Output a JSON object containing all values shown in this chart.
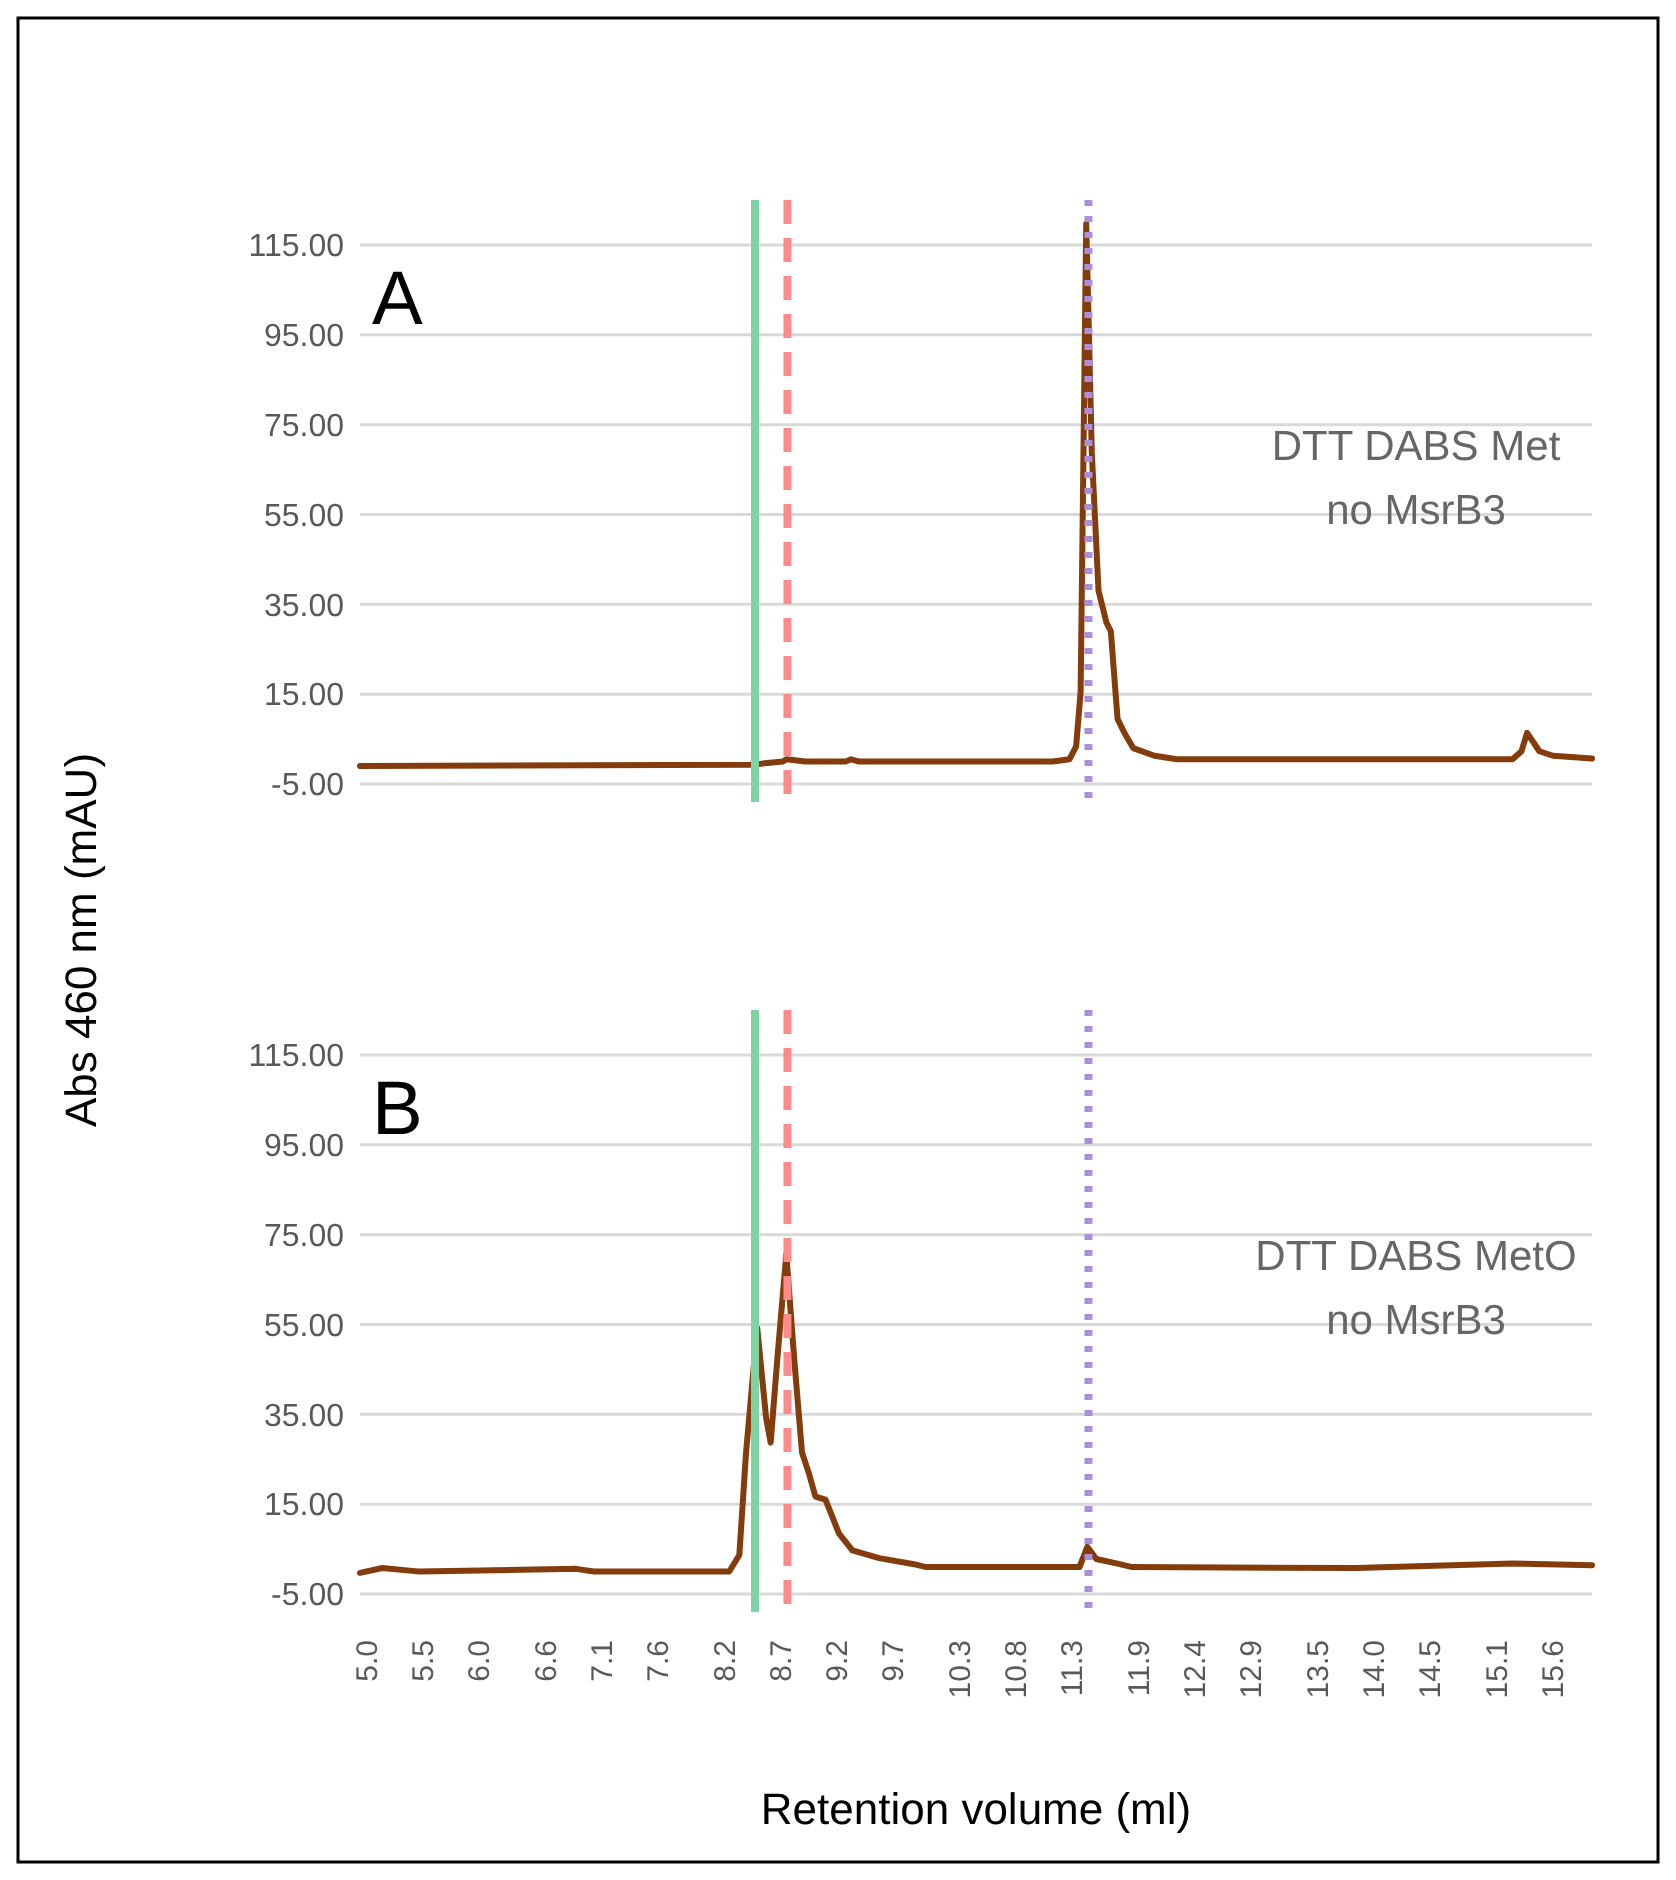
{
  "chart_data": [
    {
      "type": "line",
      "xlim": [
        4.94,
        15.95
      ],
      "ylim": [
        -9,
        125
      ],
      "yticks": [
        {
          "value": -5,
          "label": "-5.00"
        },
        {
          "value": 15,
          "label": "15.00"
        },
        {
          "value": 35,
          "label": "35.00"
        },
        {
          "value": 55,
          "label": "55.00"
        },
        {
          "value": 75,
          "label": "75.00"
        },
        {
          "value": 95,
          "label": "95.00"
        },
        {
          "value": 115,
          "label": "115.00"
        }
      ],
      "tick_labels": "y",
      "grid": "y",
      "ylabel": "Abs 460 nm (mAU)",
      "line_style": "solid",
      "annotations": [
        "A",
        "DTT DABS Met\nno MsrB3"
      ],
      "ref_lines": [
        {
          "axis": "x",
          "value": 8.47,
          "color": "#7dd3a2",
          "line_style": "solid"
        },
        {
          "axis": "x",
          "value": 8.76,
          "color": "#ff8a8a",
          "line_style": "dashed"
        },
        {
          "axis": "x",
          "value": 11.45,
          "color": "#ab8fdc",
          "line_style": "dotted"
        }
      ],
      "series": [
        {
          "color": "#843c0c",
          "x": [
            4.94,
            8.43,
            8.72,
            8.75,
            8.92,
            9.28,
            9.33,
            9.4,
            11.13,
            11.28,
            11.34,
            11.38,
            11.43,
            11.48,
            11.54,
            11.61,
            11.65,
            11.71,
            11.77,
            11.85,
            12.04,
            12.24,
            15.24,
            15.32,
            15.37,
            15.48,
            15.6,
            15.95
          ],
          "values": [
            -1,
            -0.7,
            0,
            0.5,
            0,
            0,
            0.5,
            0,
            0,
            0.5,
            3.4,
            15.6,
            119.7,
            68.7,
            38,
            31,
            29,
            9.5,
            6.4,
            3,
            1.3,
            0.5,
            0.5,
            2.3,
            6.4,
            2.3,
            1.3,
            0.7
          ]
        }
      ]
    },
    {
      "type": "line",
      "xlim": [
        4.94,
        15.95
      ],
      "ylim": [
        -9,
        125
      ],
      "yticks": [
        {
          "value": -5,
          "label": "-5.00"
        },
        {
          "value": 15,
          "label": "15.00"
        },
        {
          "value": 35,
          "label": "35.00"
        },
        {
          "value": 55,
          "label": "55.00"
        },
        {
          "value": 75,
          "label": "75.00"
        },
        {
          "value": 95,
          "label": "95.00"
        },
        {
          "value": 115,
          "label": "115.00"
        }
      ],
      "xticks": [
        {
          "value": 5.0,
          "label": "5.0"
        },
        {
          "value": 5.5,
          "label": "5.5"
        },
        {
          "value": 6.0,
          "label": "6.0"
        },
        {
          "value": 6.6,
          "label": "6.6"
        },
        {
          "value": 7.1,
          "label": "7.1"
        },
        {
          "value": 7.6,
          "label": "7.6"
        },
        {
          "value": 8.2,
          "label": "8.2"
        },
        {
          "value": 8.7,
          "label": "8.7"
        },
        {
          "value": 9.2,
          "label": "9.2"
        },
        {
          "value": 9.7,
          "label": "9.7"
        },
        {
          "value": 10.3,
          "label": "10.3"
        },
        {
          "value": 10.8,
          "label": "10.8"
        },
        {
          "value": 11.3,
          "label": "11.3"
        },
        {
          "value": 11.9,
          "label": "11.9"
        },
        {
          "value": 12.4,
          "label": "12.4"
        },
        {
          "value": 12.9,
          "label": "12.9"
        },
        {
          "value": 13.5,
          "label": "13.5"
        },
        {
          "value": 14.0,
          "label": "14.0"
        },
        {
          "value": 14.5,
          "label": "14.5"
        },
        {
          "value": 15.1,
          "label": "15.1"
        },
        {
          "value": 15.6,
          "label": "15.6"
        }
      ],
      "grid": "y",
      "xlabel": "Retention volume (ml)",
      "line_style": "solid",
      "annotations": [
        "B",
        "DTT DABS MetO\nno MsrB3"
      ],
      "ref_lines": [
        {
          "axis": "x",
          "value": 8.47,
          "color": "#7dd3a2",
          "line_style": "solid"
        },
        {
          "axis": "x",
          "value": 8.76,
          "color": "#ff8a8a",
          "line_style": "dashed"
        },
        {
          "axis": "x",
          "value": 11.45,
          "color": "#ab8fdc",
          "line_style": "dotted"
        }
      ],
      "series": [
        {
          "color": "#843c0c",
          "x": [
            4.94,
            5.14,
            5.43,
            5.47,
            6.87,
            7.03,
            8.24,
            8.33,
            8.39,
            8.49,
            8.57,
            8.61,
            8.67,
            8.75,
            8.82,
            8.89,
            8.95,
            9.01,
            9.1,
            9.22,
            9.34,
            9.58,
            9.88,
            10.0,
            11.37,
            11.44,
            11.52,
            11.72,
            11.84,
            13.84,
            15.24,
            15.95
          ],
          "values": [
            -0.3,
            0.8,
            0.1,
            0,
            0.6,
            0,
            0,
            3.7,
            26.5,
            54.2,
            34,
            28.7,
            47.5,
            70.7,
            47.5,
            26.5,
            22,
            16.7,
            16,
            8.5,
            4.7,
            3,
            1.7,
            1,
            1,
            5.5,
            2.8,
            1.7,
            1,
            0.8,
            1.8,
            1.4
          ]
        }
      ]
    }
  ]
}
